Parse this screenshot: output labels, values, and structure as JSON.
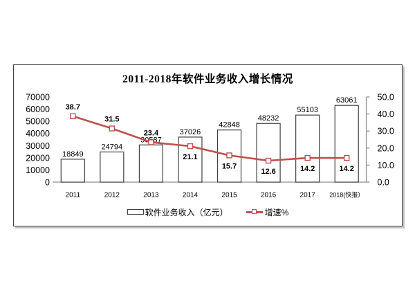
{
  "chart": {
    "title": "2011-2018年软件业务收入增长情况",
    "legend": [
      {
        "label": "软件业务收入（亿元）",
        "swatch": "bar-swatch"
      },
      {
        "label": "增速%",
        "swatch": "line-marker-swatch"
      }
    ],
    "colors": {
      "line": "#C0504D",
      "marker_fill": "#FFFFFF",
      "bar_fill": "#FFFFFF",
      "bar_border": "#404040",
      "axis": "#8C8C8C",
      "text": "#000000",
      "box_border": "#404040"
    }
  },
  "chart_data": {
    "type": "bar+line combo",
    "title": "2011-2018年软件业务收入增长情况",
    "categories": [
      "2011",
      "2012",
      "2013",
      "2014",
      "2015",
      "2016",
      "2017",
      "2018(快报）"
    ],
    "series": [
      {
        "name": "软件业务收入（亿元）",
        "type": "bar",
        "axis": "left",
        "values": [
          18849,
          24794,
          30587,
          37026,
          42848,
          48232,
          55103,
          63061
        ],
        "labels": [
          "18849",
          "24794",
          "30587",
          "37026",
          "42848",
          "48232",
          "55103",
          "63061"
        ]
      },
      {
        "name": "增速%",
        "type": "line",
        "axis": "right",
        "values": [
          38.7,
          31.5,
          23.4,
          21.1,
          15.7,
          12.6,
          14.2,
          14.2
        ],
        "labels": [
          "38.7",
          "31.5",
          "23.4",
          "21.1",
          "15.7",
          "12.6",
          "14.2",
          "14.2"
        ],
        "label_side": [
          "above",
          "above",
          "above",
          "below",
          "below",
          "below",
          "below",
          "below"
        ]
      }
    ],
    "left_axis": {
      "min": 0,
      "max": 70000,
      "step": 10000,
      "tick_labels": [
        "0",
        "10000",
        "20000",
        "30000",
        "40000",
        "50000",
        "60000",
        "70000"
      ]
    },
    "right_axis": {
      "min": 0,
      "max": 50,
      "step": 10,
      "tick_labels": [
        "0.0",
        "10.0",
        "20.0",
        "30.0",
        "40.0",
        "50.0"
      ]
    },
    "grid": false,
    "legend_position": "bottom"
  }
}
